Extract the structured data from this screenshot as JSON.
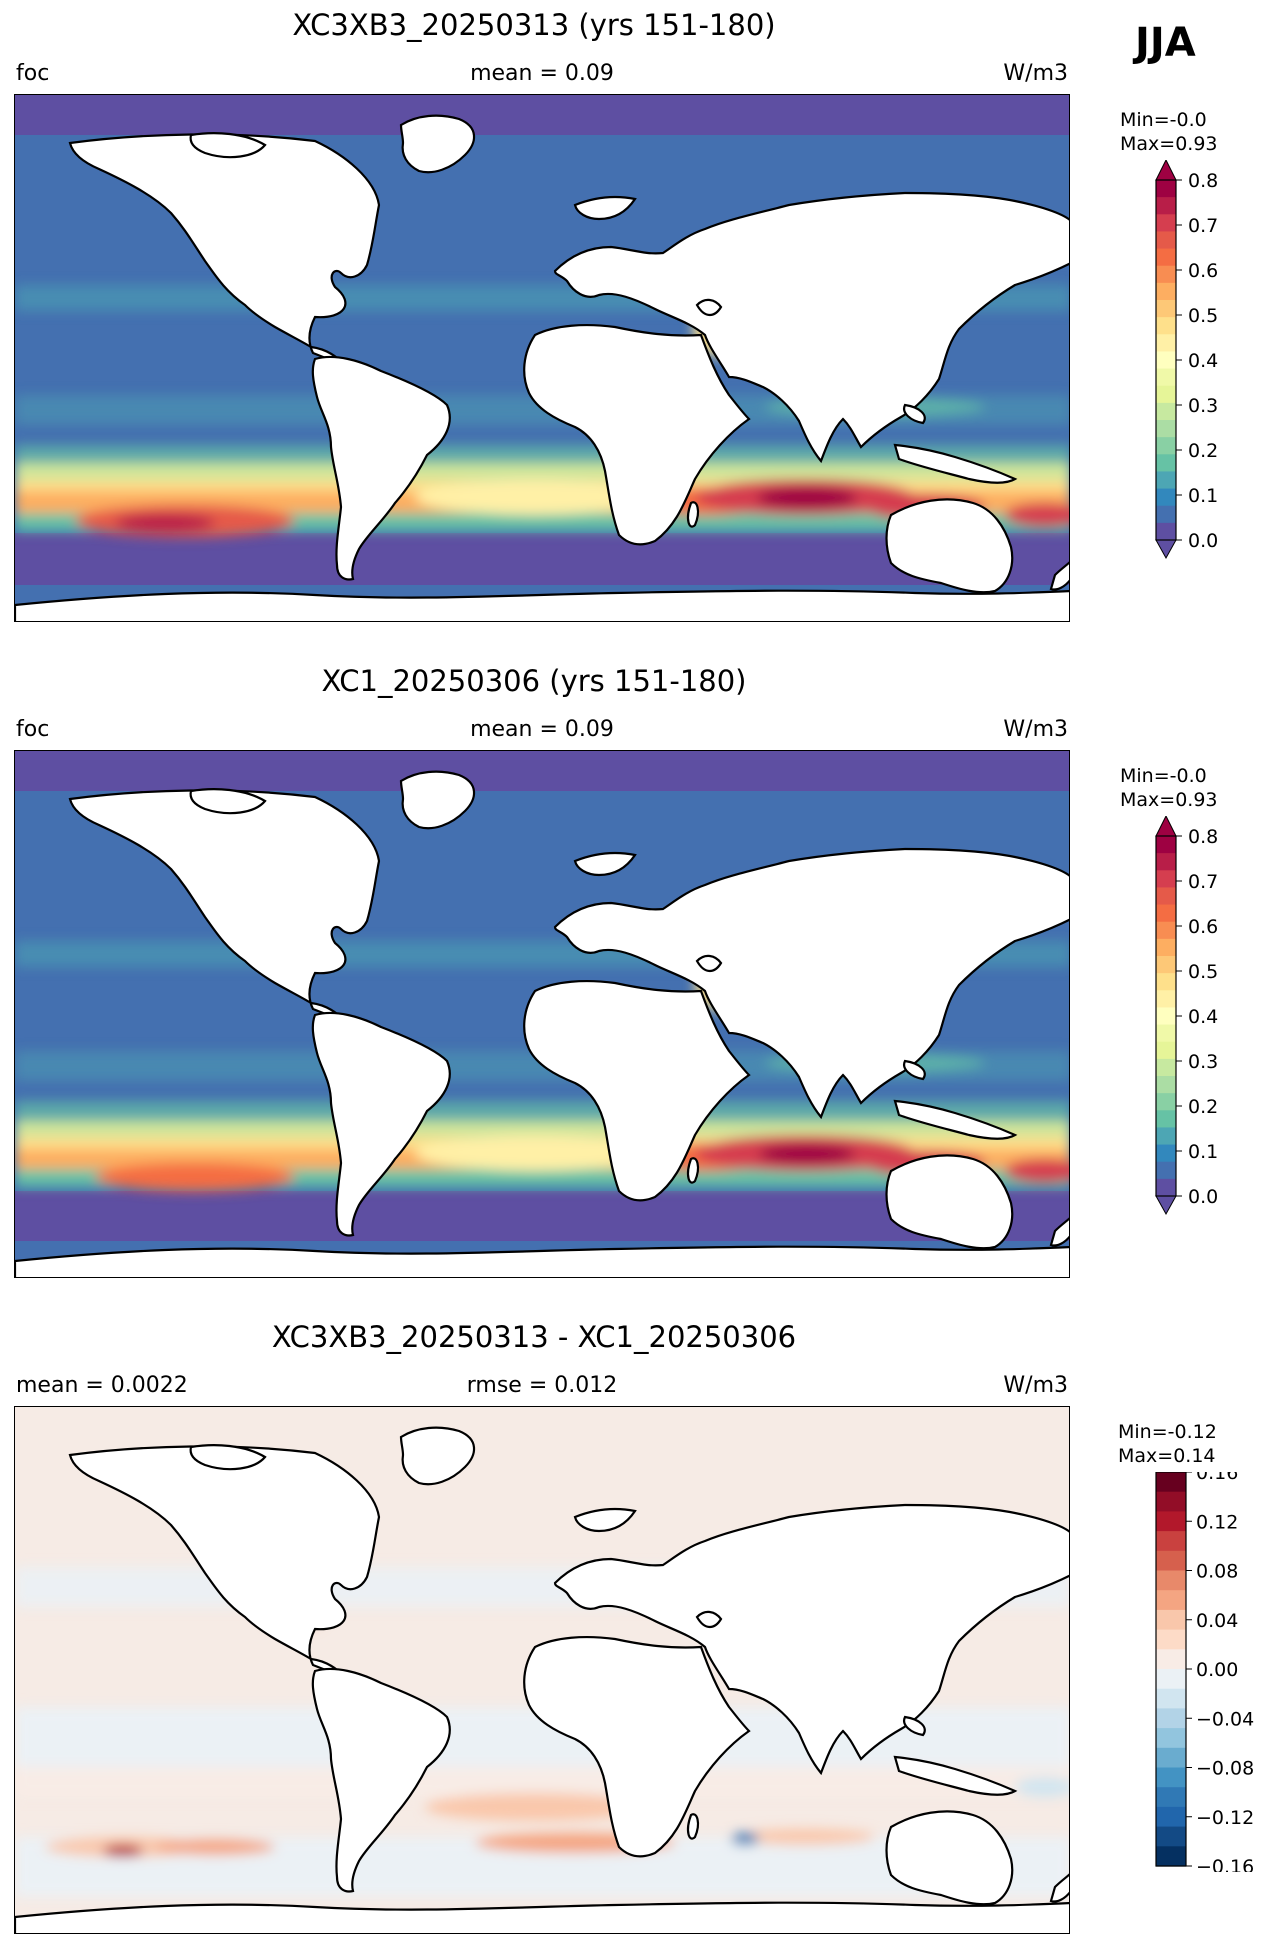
{
  "season": "JJA",
  "panels": [
    {
      "title": "XC3XB3_20250313 (yrs 151-180)",
      "left_label": "foc",
      "center_label": "mean = 0.09",
      "right_label": "W/m3",
      "min_text": "Min=-0.0",
      "max_text": "Max=0.93"
    },
    {
      "title": "XC1_20250306 (yrs 151-180)",
      "left_label": "foc",
      "center_label": "mean = 0.09",
      "right_label": "W/m3",
      "min_text": "Min=-0.0",
      "max_text": "Max=0.93"
    },
    {
      "title": "XC3XB3_20250313 - XC1_20250306",
      "left_label": "mean = 0.0022",
      "center_label": "rmse = 0.012",
      "right_label": "W/m3",
      "min_text": "Min=-0.12",
      "max_text": "Max=0.14"
    }
  ],
  "colorbars": {
    "field_ticks": [
      "0.8",
      "0.7",
      "0.6",
      "0.5",
      "0.4",
      "0.3",
      "0.2",
      "0.1",
      "0.0"
    ],
    "diff_ticks": [
      "0.16",
      "0.12",
      "0.08",
      "0.04",
      "0.00",
      "−0.04",
      "−0.08",
      "−0.12",
      "−0.16"
    ],
    "field_colors": [
      "#9e0142",
      "#b81e48",
      "#d53e4f",
      "#e55a49",
      "#f46d43",
      "#f88d52",
      "#fdae61",
      "#fdc877",
      "#fee08b",
      "#fff0a6",
      "#ffffbf",
      "#f0f9a8",
      "#e6f598",
      "#c7e9a0",
      "#abdda4",
      "#89d0a4",
      "#66c2a5",
      "#4da6b4",
      "#3288bd",
      "#4470b0",
      "#5e4fa2"
    ],
    "diff_colors": [
      "#67001f",
      "#920d27",
      "#b2182b",
      "#c9413f",
      "#d6604d",
      "#e8896a",
      "#f4a582",
      "#f9c7ab",
      "#fddbc7",
      "#f8ece6",
      "#ebf1f5",
      "#d1e5f0",
      "#b2d3e7",
      "#92c5de",
      "#6aaccf",
      "#4393c3",
      "#3079b5",
      "#2166ac",
      "#134a85",
      "#053061"
    ]
  }
}
